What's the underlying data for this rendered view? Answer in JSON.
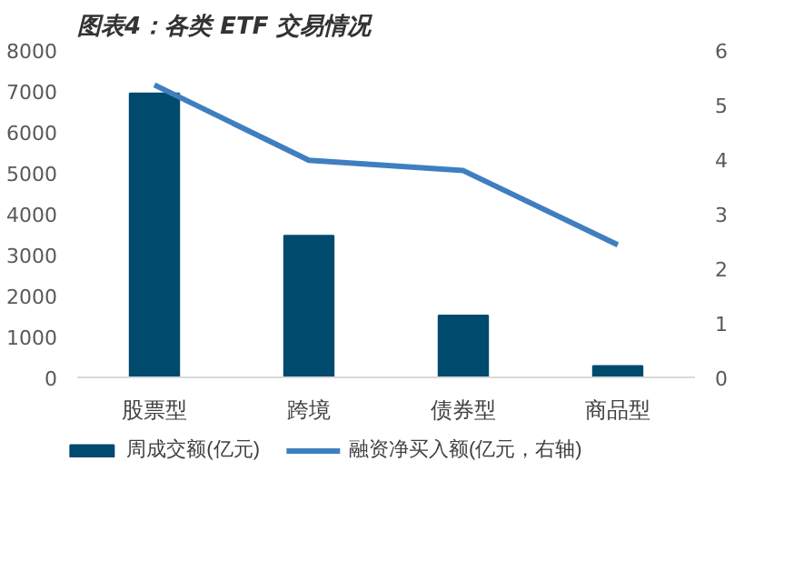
{
  "chart_data": {
    "type": "bar",
    "title": "图表4：各类 ETF 交易情况",
    "categories": [
      "股票型",
      "跨境",
      "债券型",
      "商品型"
    ],
    "series": [
      {
        "name": "周成交额(亿元)",
        "color": "#004a6e",
        "values": [
          6940,
          3460,
          1510,
          280
        ]
      },
      {
        "name": "融资净买入额(亿元，右轴)",
        "type": "line",
        "axis": "y2",
        "color": "#3f7fc0",
        "values": [
          5.36,
          3.98,
          3.79,
          2.43
        ]
      }
    ],
    "ylim": [
      0,
      8000
    ],
    "yticks": [
      0,
      1000,
      2000,
      3000,
      4000,
      5000,
      6000,
      7000,
      8000
    ],
    "y2lim": [
      0,
      6
    ],
    "y2ticks": [
      0,
      1,
      2,
      3,
      4,
      5,
      6
    ],
    "grid": false,
    "legend": "bottom"
  }
}
